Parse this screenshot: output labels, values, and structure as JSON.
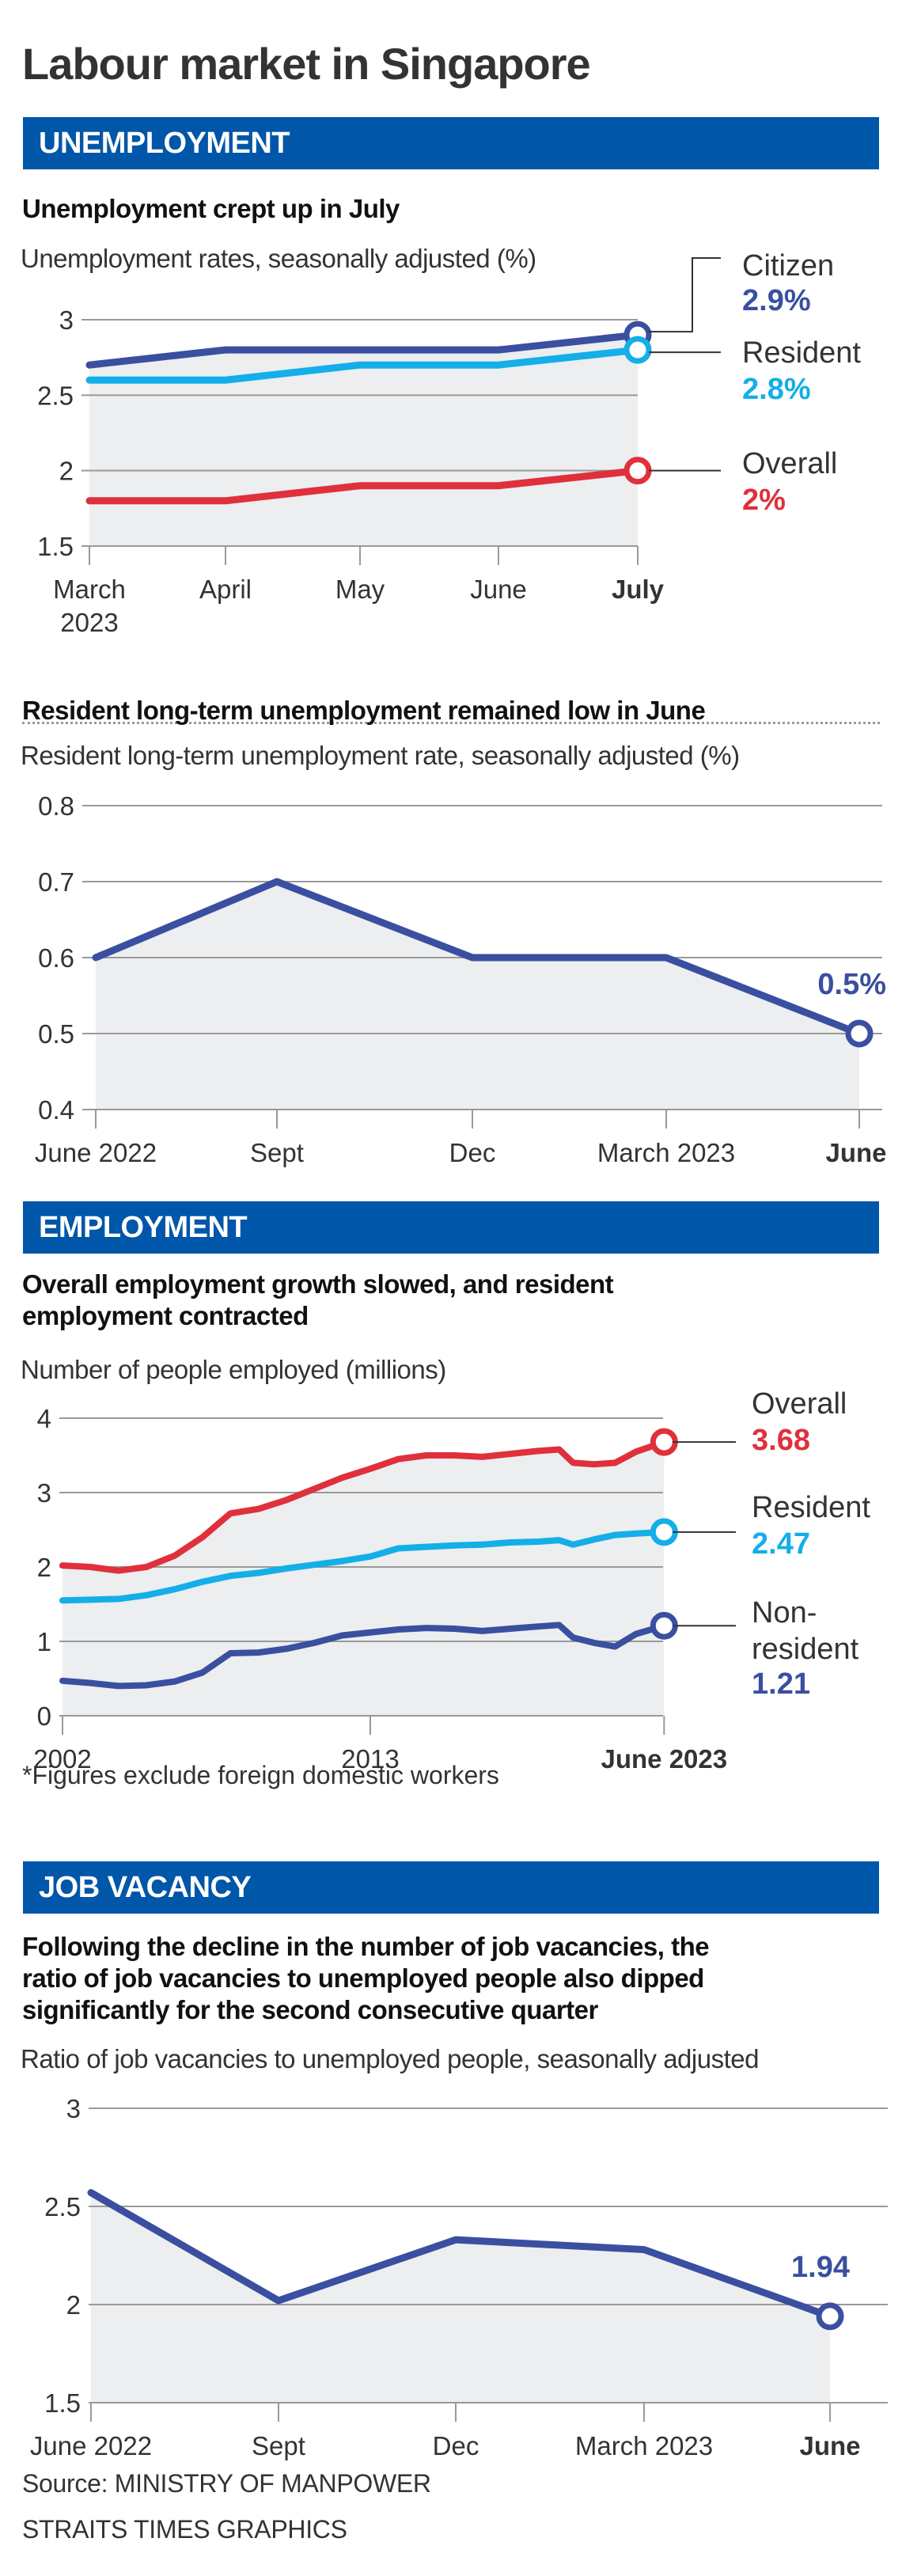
{
  "title": "Labour market in Singapore",
  "colors": {
    "section_bar": "#0056a8",
    "citizen": "#3a4fa0",
    "resident": "#14aee8",
    "overall": "#e0303c",
    "non_resident": "#3a4fa0",
    "single": "#3a4fa0",
    "area_fill": "#eceef0",
    "grid": "#999999"
  },
  "sections": {
    "unemployment": "UNEMPLOYMENT",
    "employment": "EMPLOYMENT",
    "job_vacancy": "JOB VACANCY"
  },
  "charts": {
    "unemployment_rate": {
      "heading": "Unemployment crept up in July",
      "description": "Unemployment rates, seasonally adjusted (%)"
    },
    "long_term": {
      "heading": "Resident long-term unemployment remained low in June",
      "description": "Resident long-term unemployment rate, seasonally adjusted (%)"
    },
    "employment": {
      "heading_line1": "Overall employment growth slowed, and resident",
      "heading_line2": "employment contracted",
      "description": "Number of people employed (millions)",
      "note": "*Figures exclude foreign domestic workers"
    },
    "vacancy": {
      "heading_line1": "Following the decline in the number of job vacancies, the",
      "heading_line2": "ratio of job vacancies to unemployed people also dipped",
      "heading_line3": "significantly for the second consecutive quarter",
      "description": "Ratio of job vacancies to unemployed people, seasonally adjusted"
    }
  },
  "footer": {
    "source": "Source: MINISTRY OF MANPOWER",
    "credit": "STRAITS TIMES GRAPHICS"
  },
  "chart_data": [
    {
      "type": "line",
      "title": "Unemployment crept up in July",
      "ylabel": "Unemployment rates, seasonally adjusted (%)",
      "categories": [
        "March 2023",
        "April",
        "May",
        "June",
        "July"
      ],
      "category_lines": [
        [
          "March",
          "2023"
        ],
        [
          "April"
        ],
        [
          "May"
        ],
        [
          "June"
        ],
        [
          "July"
        ]
      ],
      "yticks": [
        1.5,
        2,
        2.5,
        3
      ],
      "ylim": [
        1.5,
        3
      ],
      "grid": true,
      "legend": "right",
      "series": [
        {
          "name": "Citizen",
          "label_value": "2.9%",
          "color_key": "citizen",
          "values": [
            2.7,
            2.8,
            2.8,
            2.8,
            2.9
          ]
        },
        {
          "name": "Resident",
          "label_value": "2.8%",
          "color_key": "resident",
          "values": [
            2.6,
            2.6,
            2.7,
            2.7,
            2.8
          ]
        },
        {
          "name": "Overall",
          "label_value": "2%",
          "color_key": "overall",
          "values": [
            1.8,
            1.8,
            1.9,
            1.9,
            2.0
          ]
        }
      ]
    },
    {
      "type": "line",
      "title": "Resident long-term unemployment remained low in June",
      "ylabel": "Resident long-term unemployment rate, seasonally adjusted (%)",
      "categories": [
        "June 2022",
        "Sept",
        "Dec",
        "March 2023",
        "June"
      ],
      "yticks": [
        0.4,
        0.5,
        0.6,
        0.7,
        0.8
      ],
      "ylim": [
        0.4,
        0.8
      ],
      "grid": true,
      "series": [
        {
          "name": "Resident long-term unemployment rate",
          "label_value": "0.5%",
          "color_key": "single",
          "values": [
            0.6,
            0.7,
            0.6,
            0.6,
            0.5
          ]
        }
      ]
    },
    {
      "type": "line",
      "title": "Overall employment growth slowed, and resident employment contracted",
      "ylabel": "Number of people employed (millions)",
      "x_ticks": [
        "2002",
        "2013",
        "June 2023"
      ],
      "x_tick_years": [
        2002,
        2013,
        2023.5
      ],
      "yticks": [
        0,
        1,
        2,
        3,
        4
      ],
      "ylim": [
        0,
        4
      ],
      "grid": true,
      "legend": "right",
      "x": [
        2002,
        2003,
        2004,
        2005,
        2006,
        2007,
        2008,
        2009,
        2010,
        2011,
        2012,
        2013,
        2014,
        2015,
        2016,
        2017,
        2018,
        2019,
        2019.75,
        2020.25,
        2021,
        2021.75,
        2022.5,
        2023.5
      ],
      "series": [
        {
          "name": "Overall",
          "label_value": "3.68",
          "color_key": "overall",
          "values": [
            2.02,
            2.0,
            1.95,
            2.0,
            2.15,
            2.4,
            2.72,
            2.78,
            2.9,
            3.05,
            3.2,
            3.32,
            3.45,
            3.5,
            3.5,
            3.48,
            3.52,
            3.56,
            3.58,
            3.4,
            3.38,
            3.4,
            3.55,
            3.68
          ]
        },
        {
          "name": "Resident",
          "label_value": "2.47",
          "color_key": "resident",
          "values": [
            1.55,
            1.56,
            1.57,
            1.62,
            1.7,
            1.8,
            1.88,
            1.92,
            1.98,
            2.03,
            2.08,
            2.14,
            2.25,
            2.27,
            2.29,
            2.3,
            2.33,
            2.34,
            2.36,
            2.3,
            2.37,
            2.43,
            2.45,
            2.47
          ]
        },
        {
          "name": "Non-resident",
          "label_value": "1.21",
          "color_key": "non_resident",
          "values": [
            0.47,
            0.44,
            0.4,
            0.41,
            0.46,
            0.58,
            0.84,
            0.85,
            0.9,
            0.98,
            1.08,
            1.12,
            1.16,
            1.18,
            1.17,
            1.14,
            1.17,
            1.2,
            1.22,
            1.05,
            0.98,
            0.93,
            1.1,
            1.21
          ]
        }
      ],
      "legend_labels": {
        "non_resident_line1": "Non-",
        "non_resident_line2": "resident"
      }
    },
    {
      "type": "line",
      "title": "Following the decline in the number of job vacancies, the ratio of job vacancies to unemployed people also dipped significantly for the second consecutive quarter",
      "ylabel": "Ratio of job vacancies to unemployed people, seasonally adjusted",
      "categories": [
        "June 2022",
        "Sept",
        "Dec",
        "March 2023",
        "June"
      ],
      "yticks": [
        1.5,
        2,
        2.5,
        3
      ],
      "ylim": [
        1.5,
        3
      ],
      "grid": true,
      "series": [
        {
          "name": "Job vacancy ratio",
          "label_value": "1.94",
          "color_key": "single",
          "values": [
            2.57,
            2.02,
            2.33,
            2.28,
            1.94
          ]
        }
      ]
    }
  ]
}
